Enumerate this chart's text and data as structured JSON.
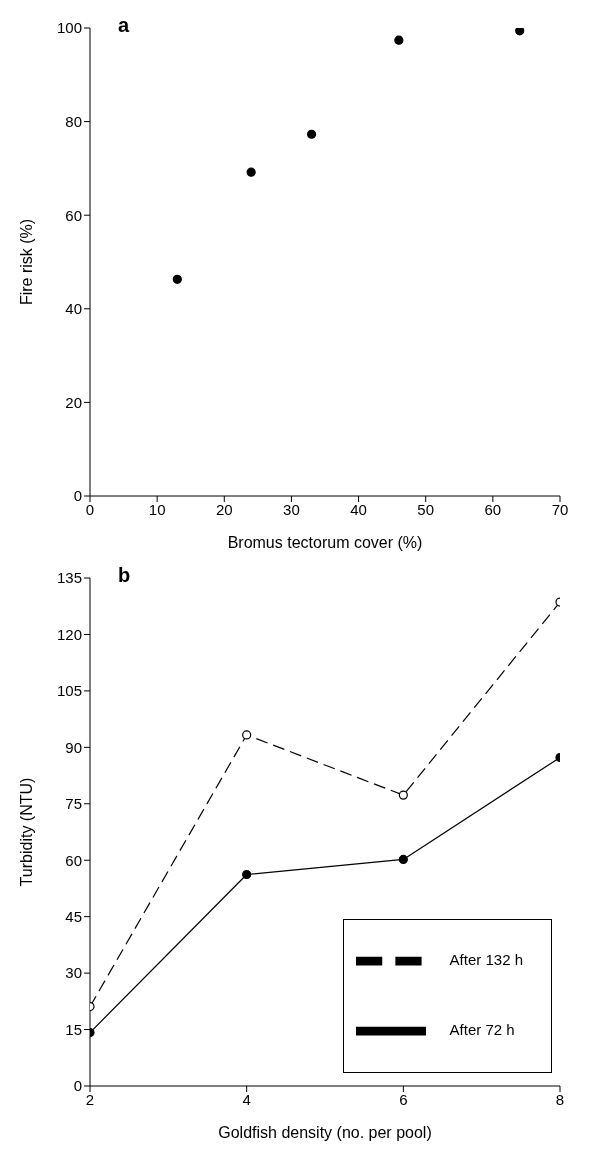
{
  "chart_data": [
    {
      "type": "scatter",
      "title": "a",
      "xlabel": "Bromus tectorum cover (%)",
      "ylabel": "Fire risk (%)",
      "x": [
        13,
        24,
        33,
        46,
        64
      ],
      "series": [
        {
          "color": "#000000",
          "values": [
            46.3,
            69.2,
            77.3,
            97.4,
            99.4
          ]
        }
      ],
      "xlim": [
        0,
        70
      ],
      "xticks": [
        0,
        10,
        20,
        30,
        40,
        50,
        60,
        70
      ],
      "ylim": [
        0,
        100
      ],
      "yticks": [
        0,
        20,
        40,
        60,
        80,
        100
      ],
      "marker": "circle"
    },
    {
      "type": "line",
      "title": "b",
      "xlabel": "Goldfish density (no. per pool)",
      "ylabel": "Turbidity (NTU)",
      "x": [
        2,
        4,
        6,
        8
      ],
      "series": [
        {
          "name": "After 72 h",
          "color": "#000000",
          "values": [
            14.2,
            56.2,
            60.2,
            87.3
          ],
          "line_style": "solid"
        },
        {
          "name": "After 132 h",
          "color": "#000000",
          "values": [
            21.1,
            93.3,
            77.3,
            128.6
          ],
          "line_style": "dashed"
        }
      ],
      "xlim": [
        2,
        8
      ],
      "xticks": [
        2,
        4,
        6,
        8
      ],
      "ylim": [
        0,
        135
      ],
      "yticks": [
        0,
        15,
        30,
        45,
        60,
        75,
        90,
        105,
        120,
        135
      ],
      "marker": "circle",
      "legend": "bottom right"
    }
  ]
}
